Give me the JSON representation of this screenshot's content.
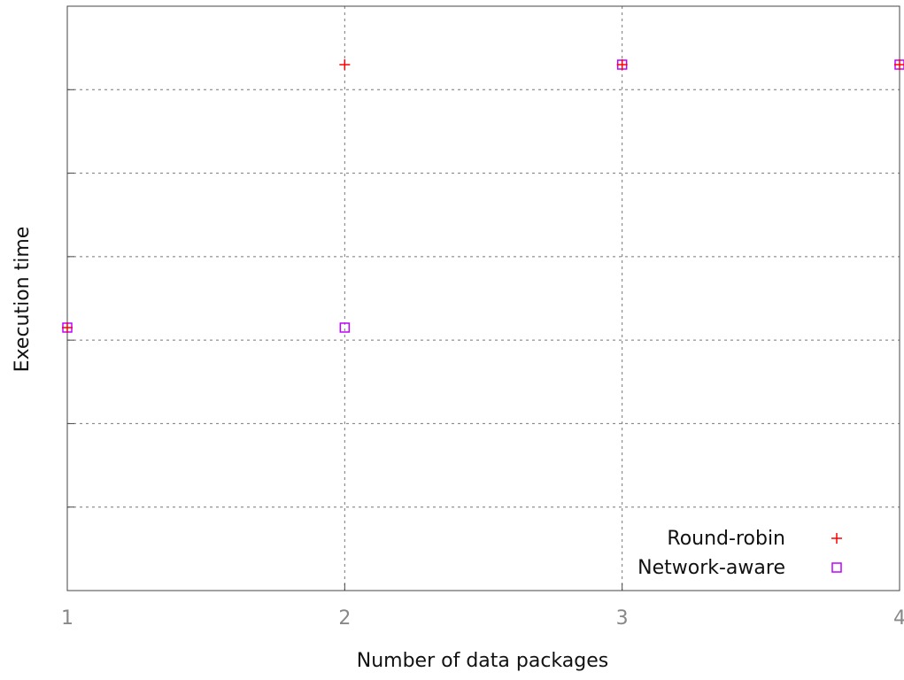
{
  "chart_data": {
    "type": "scatter",
    "title": "",
    "xlabel": "Number of data packages",
    "ylabel": "Execution time",
    "xlim": [
      1,
      4
    ],
    "ylim": [
      0,
      7
    ],
    "x_ticks": [
      "1",
      "2",
      "3",
      "4"
    ],
    "y_ticks": [
      1,
      2,
      3,
      4,
      5,
      6
    ],
    "y_tick_labels_visible": false,
    "grid": true,
    "legend_position": "bottom-right",
    "series": [
      {
        "name": "Round-robin",
        "marker": "plus",
        "color": "#ff0000",
        "x": [
          1,
          2,
          3,
          4
        ],
        "y": [
          3.15,
          6.3,
          6.3,
          6.3
        ]
      },
      {
        "name": "Network-aware",
        "marker": "square",
        "color": "#c000ff",
        "x": [
          1,
          2,
          3,
          4
        ],
        "y": [
          3.15,
          3.15,
          6.3,
          6.3
        ]
      }
    ]
  }
}
